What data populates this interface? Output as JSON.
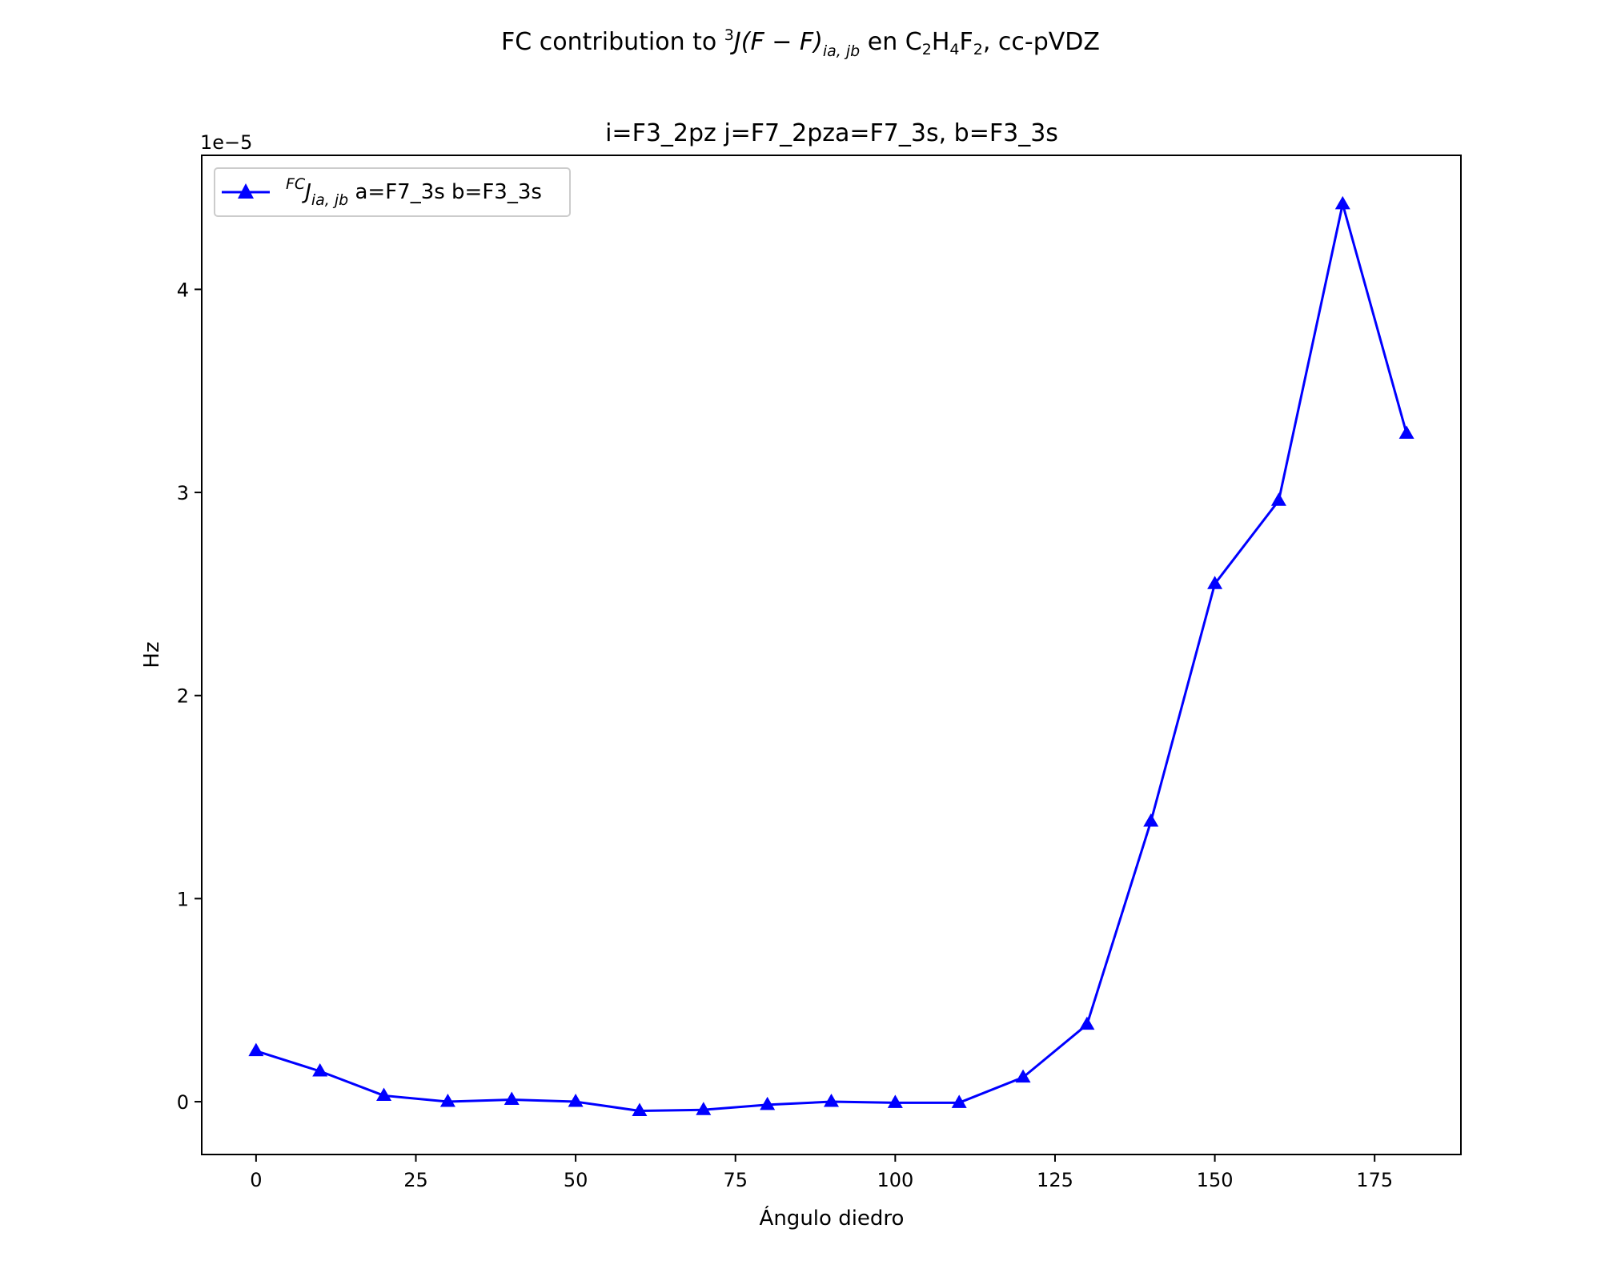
{
  "chart_data": {
    "type": "line",
    "title": {
      "prefix": "FC contribution to ",
      "j_superscript": "3",
      "j_main": "J(F − F)",
      "j_subscript": "ia, jb",
      "mid": " en C",
      "c_sub": "2",
      "h": "H",
      "h_sub": "4",
      "f": "F",
      "f_sub": "2",
      "suffix": ", cc-pVDZ"
    },
    "subtitle": "i=F3_2pz  j=F7_2pza=F7_3s, b=F3_3s",
    "xlabel": "Ángulo diedro",
    "ylabel": "Hz",
    "y_offset_label": "1e−5",
    "xlim": [
      -8.5,
      188.5
    ],
    "ylim": [
      -0.26,
      4.66
    ],
    "y_scale_factor": 1e-05,
    "x_ticks": [
      0,
      25,
      50,
      75,
      100,
      125,
      150,
      175
    ],
    "y_ticks": [
      0,
      1,
      2,
      3,
      4
    ],
    "grid": false,
    "legend_position": "upper left",
    "series": [
      {
        "legend": {
          "superscript": "FC",
          "main": "J",
          "subscript": "ia, jb",
          "rest": " a=F7_3s b=F3_3s"
        },
        "color": "#0000ff",
        "marker": "triangle-up",
        "x": [
          0,
          10,
          20,
          30,
          40,
          50,
          60,
          70,
          80,
          90,
          100,
          110,
          120,
          130,
          140,
          150,
          160,
          170,
          180
        ],
        "y": [
          0.25,
          0.15,
          0.03,
          0.0,
          0.01,
          0.0,
          -0.045,
          -0.04,
          -0.015,
          0.0,
          -0.005,
          -0.005,
          0.12,
          0.38,
          1.38,
          2.55,
          2.96,
          4.42,
          3.29
        ]
      }
    ]
  }
}
